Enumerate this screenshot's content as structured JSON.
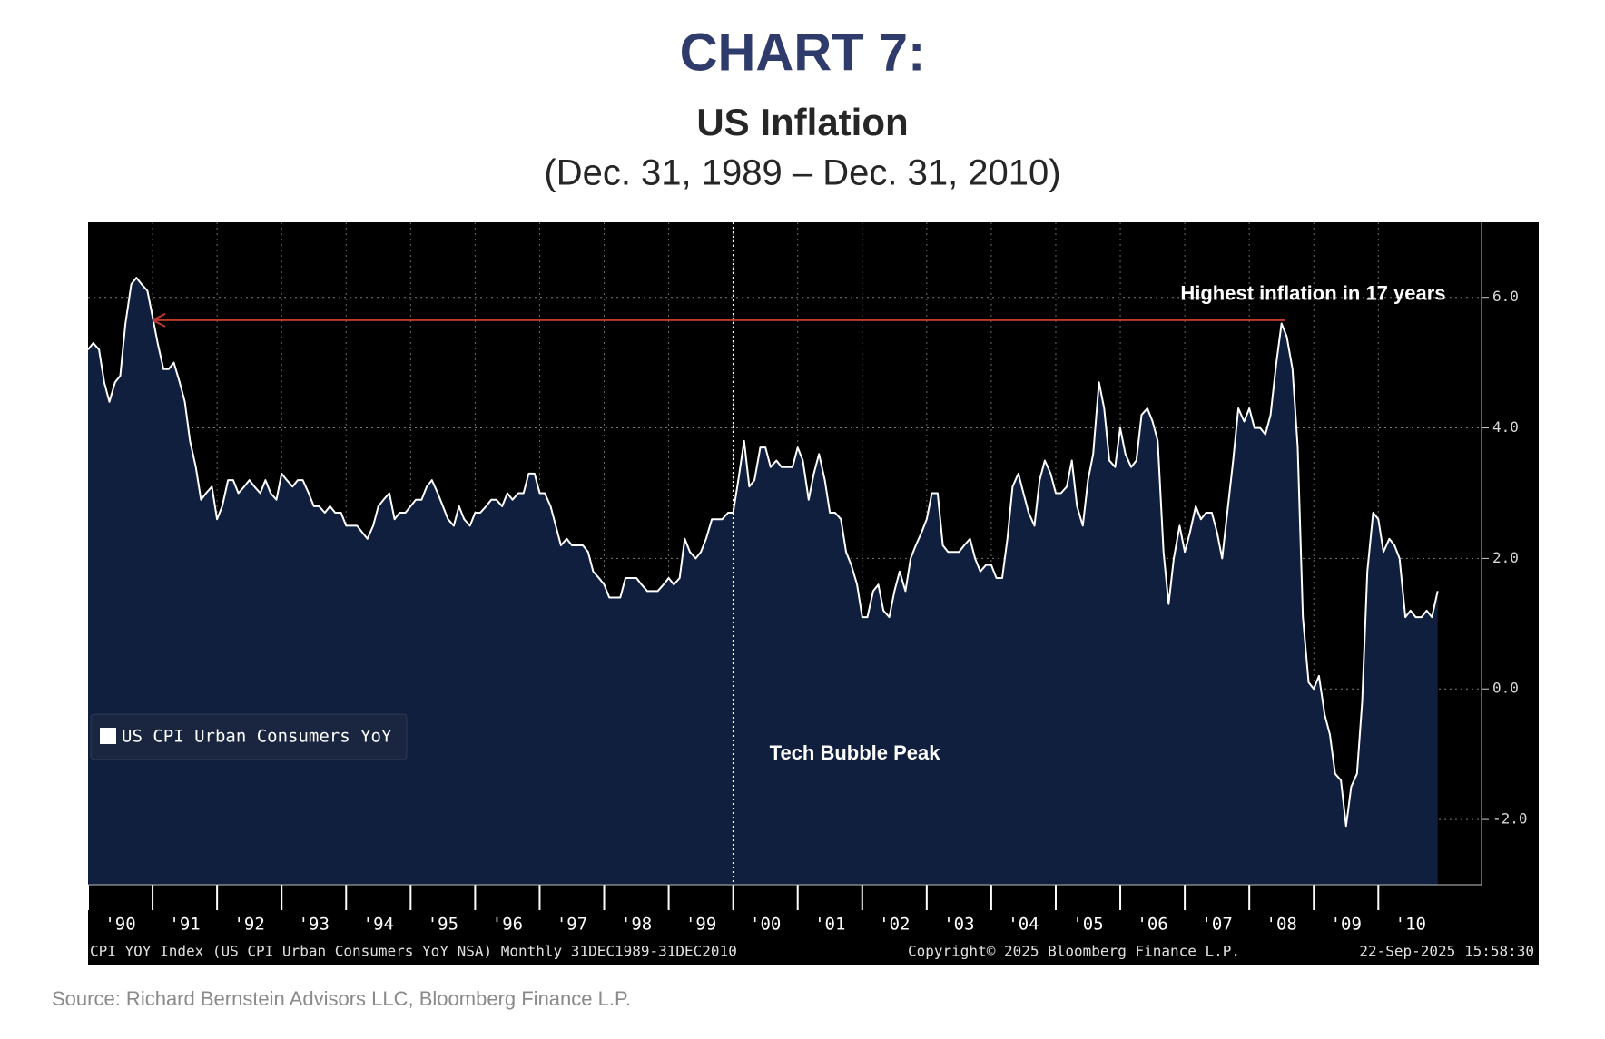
{
  "chart_data": {
    "type": "area",
    "title": "CHART 7:",
    "subtitle": "US Inflation",
    "period": "(Dec. 31, 1989 – Dec. 31, 2010)",
    "x": [
      1990,
      1990.08,
      1990.17,
      1990.25,
      1990.33,
      1990.42,
      1990.5,
      1990.58,
      1990.67,
      1990.75,
      1990.83,
      1990.92,
      1991,
      1991.08,
      1991.17,
      1991.25,
      1991.33,
      1991.42,
      1991.5,
      1991.58,
      1991.67,
      1991.75,
      1991.83,
      1991.92,
      1992,
      1992.08,
      1992.17,
      1992.25,
      1992.33,
      1992.42,
      1992.5,
      1992.58,
      1992.67,
      1992.75,
      1992.83,
      1992.92,
      1993,
      1993.08,
      1993.17,
      1993.25,
      1993.33,
      1993.42,
      1993.5,
      1993.58,
      1993.67,
      1993.75,
      1993.83,
      1993.92,
      1994,
      1994.08,
      1994.17,
      1994.25,
      1994.33,
      1994.42,
      1994.5,
      1994.58,
      1994.67,
      1994.75,
      1994.83,
      1994.92,
      1995,
      1995.08,
      1995.17,
      1995.25,
      1995.33,
      1995.42,
      1995.5,
      1995.58,
      1995.67,
      1995.75,
      1995.83,
      1995.92,
      1996,
      1996.08,
      1996.17,
      1996.25,
      1996.33,
      1996.42,
      1996.5,
      1996.58,
      1996.67,
      1996.75,
      1996.83,
      1996.92,
      1997,
      1997.08,
      1997.17,
      1997.25,
      1997.33,
      1997.42,
      1997.5,
      1997.58,
      1997.67,
      1997.75,
      1997.83,
      1997.92,
      1998,
      1998.08,
      1998.17,
      1998.25,
      1998.33,
      1998.42,
      1998.5,
      1998.58,
      1998.67,
      1998.75,
      1998.83,
      1998.92,
      1999,
      1999.08,
      1999.17,
      1999.25,
      1999.33,
      1999.42,
      1999.5,
      1999.58,
      1999.67,
      1999.75,
      1999.83,
      1999.92,
      2000,
      2000.08,
      2000.17,
      2000.25,
      2000.33,
      2000.42,
      2000.5,
      2000.58,
      2000.67,
      2000.75,
      2000.83,
      2000.92,
      2001,
      2001.08,
      2001.17,
      2001.25,
      2001.33,
      2001.42,
      2001.5,
      2001.58,
      2001.67,
      2001.75,
      2001.83,
      2001.92,
      2002,
      2002.08,
      2002.17,
      2002.25,
      2002.33,
      2002.42,
      2002.5,
      2002.58,
      2002.67,
      2002.75,
      2002.83,
      2002.92,
      2003,
      2003.08,
      2003.17,
      2003.25,
      2003.33,
      2003.42,
      2003.5,
      2003.58,
      2003.67,
      2003.75,
      2003.83,
      2003.92,
      2004,
      2004.08,
      2004.17,
      2004.25,
      2004.33,
      2004.42,
      2004.5,
      2004.58,
      2004.67,
      2004.75,
      2004.83,
      2004.92,
      2005,
      2005.08,
      2005.17,
      2005.25,
      2005.33,
      2005.42,
      2005.5,
      2005.58,
      2005.67,
      2005.75,
      2005.83,
      2005.92,
      2006,
      2006.08,
      2006.17,
      2006.25,
      2006.33,
      2006.42,
      2006.5,
      2006.58,
      2006.67,
      2006.75,
      2006.83,
      2006.92,
      2007,
      2007.08,
      2007.17,
      2007.25,
      2007.33,
      2007.42,
      2007.5,
      2007.58,
      2007.67,
      2007.75,
      2007.83,
      2007.92,
      2008,
      2008.08,
      2008.17,
      2008.25,
      2008.33,
      2008.42,
      2008.5,
      2008.58,
      2008.67,
      2008.75,
      2008.83,
      2008.92,
      2009,
      2009.08,
      2009.17,
      2009.25,
      2009.33,
      2009.42,
      2009.5,
      2009.58,
      2009.67,
      2009.75,
      2009.83,
      2009.92,
      2010,
      2010.08,
      2010.17,
      2010.25,
      2010.33,
      2010.42,
      2010.5,
      2010.58,
      2010.67,
      2010.75,
      2010.83,
      2010.92
    ],
    "series": [
      {
        "name": "US CPI Urban Consumers YoY",
        "color": "#ffffff",
        "fill": "#0f1f3d",
        "values": [
          5.2,
          5.3,
          5.2,
          4.7,
          4.4,
          4.7,
          4.8,
          5.6,
          6.2,
          6.3,
          6.2,
          6.1,
          5.7,
          5.3,
          4.9,
          4.9,
          5.0,
          4.7,
          4.4,
          3.8,
          3.4,
          2.9,
          3.0,
          3.1,
          2.6,
          2.8,
          3.2,
          3.2,
          3.0,
          3.1,
          3.2,
          3.1,
          3.0,
          3.2,
          3.0,
          2.9,
          3.3,
          3.2,
          3.1,
          3.2,
          3.2,
          3.0,
          2.8,
          2.8,
          2.7,
          2.8,
          2.7,
          2.7,
          2.5,
          2.5,
          2.5,
          2.4,
          2.3,
          2.5,
          2.8,
          2.9,
          3.0,
          2.6,
          2.7,
          2.7,
          2.8,
          2.9,
          2.9,
          3.1,
          3.2,
          3.0,
          2.8,
          2.6,
          2.5,
          2.8,
          2.6,
          2.5,
          2.7,
          2.7,
          2.8,
          2.9,
          2.9,
          2.8,
          3.0,
          2.9,
          3.0,
          3.0,
          3.3,
          3.3,
          3.0,
          3.0,
          2.8,
          2.5,
          2.2,
          2.3,
          2.2,
          2.2,
          2.2,
          2.1,
          1.8,
          1.7,
          1.6,
          1.4,
          1.4,
          1.4,
          1.7,
          1.7,
          1.7,
          1.6,
          1.5,
          1.5,
          1.5,
          1.6,
          1.7,
          1.6,
          1.7,
          2.3,
          2.1,
          2.0,
          2.1,
          2.3,
          2.6,
          2.6,
          2.6,
          2.7,
          2.7,
          3.2,
          3.8,
          3.1,
          3.2,
          3.7,
          3.7,
          3.4,
          3.5,
          3.4,
          3.4,
          3.4,
          3.7,
          3.5,
          2.9,
          3.3,
          3.6,
          3.2,
          2.7,
          2.7,
          2.6,
          2.1,
          1.9,
          1.6,
          1.1,
          1.1,
          1.5,
          1.6,
          1.2,
          1.1,
          1.5,
          1.8,
          1.5,
          2.0,
          2.2,
          2.4,
          2.6,
          3.0,
          3.0,
          2.2,
          2.1,
          2.1,
          2.1,
          2.2,
          2.3,
          2.0,
          1.8,
          1.9,
          1.9,
          1.7,
          1.7,
          2.3,
          3.1,
          3.3,
          3.0,
          2.7,
          2.5,
          3.2,
          3.5,
          3.3,
          3.0,
          3.0,
          3.1,
          3.5,
          2.8,
          2.5,
          3.2,
          3.6,
          4.7,
          4.3,
          3.5,
          3.4,
          4.0,
          3.6,
          3.4,
          3.5,
          4.2,
          4.3,
          4.1,
          3.8,
          2.1,
          1.3,
          2.0,
          2.5,
          2.1,
          2.4,
          2.8,
          2.6,
          2.7,
          2.7,
          2.4,
          2.0,
          2.8,
          3.5,
          4.3,
          4.1,
          4.3,
          4.0,
          4.0,
          3.9,
          4.2,
          5.0,
          5.6,
          5.4,
          4.9,
          3.7,
          1.1,
          0.1,
          0.0,
          0.2,
          -0.4,
          -0.7,
          -1.3,
          -1.4,
          -2.1,
          -1.5,
          -1.3,
          -0.2,
          1.8,
          2.7,
          2.6,
          2.1,
          2.3,
          2.2,
          2.0,
          1.1,
          1.2,
          1.1,
          1.1,
          1.2,
          1.1,
          1.5
        ]
      }
    ],
    "xlim": [
      1990,
      2011.6
    ],
    "xticks": [
      {
        "value": 1990,
        "label": "'90"
      },
      {
        "value": 1991,
        "label": "'91"
      },
      {
        "value": 1992,
        "label": "'92"
      },
      {
        "value": 1993,
        "label": "'93"
      },
      {
        "value": 1994,
        "label": "'94"
      },
      {
        "value": 1995,
        "label": "'95"
      },
      {
        "value": 1996,
        "label": "'96"
      },
      {
        "value": 1997,
        "label": "'97"
      },
      {
        "value": 1998,
        "label": "'98"
      },
      {
        "value": 1999,
        "label": "'99"
      },
      {
        "value": 2000,
        "label": "'00"
      },
      {
        "value": 2001,
        "label": "'01"
      },
      {
        "value": 2002,
        "label": "'02"
      },
      {
        "value": 2003,
        "label": "'03"
      },
      {
        "value": 2004,
        "label": "'04"
      },
      {
        "value": 2005,
        "label": "'05"
      },
      {
        "value": 2006,
        "label": "'06"
      },
      {
        "value": 2007,
        "label": "'07"
      },
      {
        "value": 2008,
        "label": "'08"
      },
      {
        "value": 2009,
        "label": "'09"
      },
      {
        "value": 2010,
        "label": "'10"
      }
    ],
    "ylim": [
      -3,
      7.15
    ],
    "yticks": [
      {
        "value": -2,
        "label": "-2.0"
      },
      {
        "value": 0,
        "label": "0.0"
      },
      {
        "value": 2,
        "label": "2.0"
      },
      {
        "value": 4,
        "label": "4.0"
      },
      {
        "value": 6,
        "label": "6.0"
      }
    ],
    "grid": true,
    "legend": "middle-left",
    "arrow": {
      "label": "Highest inflation in 17 years",
      "x_from": 2008.55,
      "x_to": 1991.0,
      "y": 5.65,
      "color": "#c0392b"
    },
    "vline": {
      "label": "Tech Bubble Peak",
      "x": 2000
    },
    "footer_left": "CPI YOY Index (US CPI Urban Consumers YoY NSA)  Monthly 31DEC1989-31DEC2010",
    "footer_mid": "Copyright© 2025 Bloomberg Finance L.P.",
    "footer_right": "22-Sep-2025 15:58:30",
    "source": "Source: Richard Bernstein Advisors LLC, Bloomberg Finance L.P."
  }
}
